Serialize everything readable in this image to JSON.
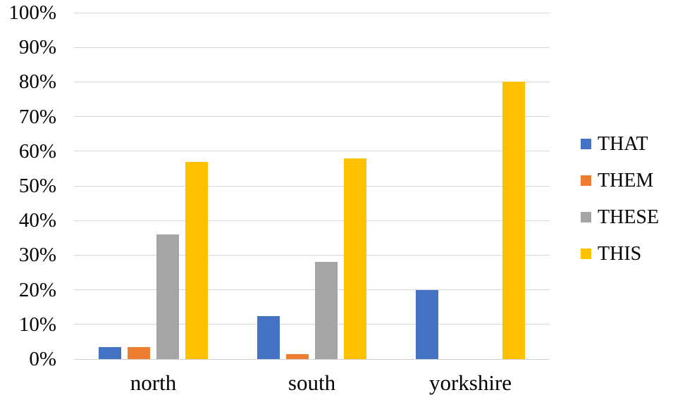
{
  "chart_data": {
    "type": "bar",
    "title": "",
    "categories": [
      "north",
      "south",
      "yorkshire"
    ],
    "series": [
      {
        "name": "THAT",
        "color": "#4472C4",
        "values": [
          3.5,
          12.5,
          20
        ]
      },
      {
        "name": "THEM",
        "color": "#ED7D31",
        "values": [
          3.5,
          1.5,
          0
        ]
      },
      {
        "name": "THESE",
        "color": "#A5A5A5",
        "values": [
          36,
          28,
          0
        ]
      },
      {
        "name": "THIS",
        "color": "#FFC000",
        "values": [
          57,
          58,
          80
        ]
      }
    ],
    "y_axis": {
      "min": 0,
      "max": 100,
      "step": 10,
      "tick_labels": [
        "0%",
        "10%",
        "20%",
        "30%",
        "40%",
        "50%",
        "60%",
        "70%",
        "80%",
        "90%",
        "100%"
      ]
    },
    "grid": true,
    "gridline_color": "#D9D9D9",
    "legend_position": "right",
    "background": "#FFFFFF",
    "text_color": "#000000"
  }
}
